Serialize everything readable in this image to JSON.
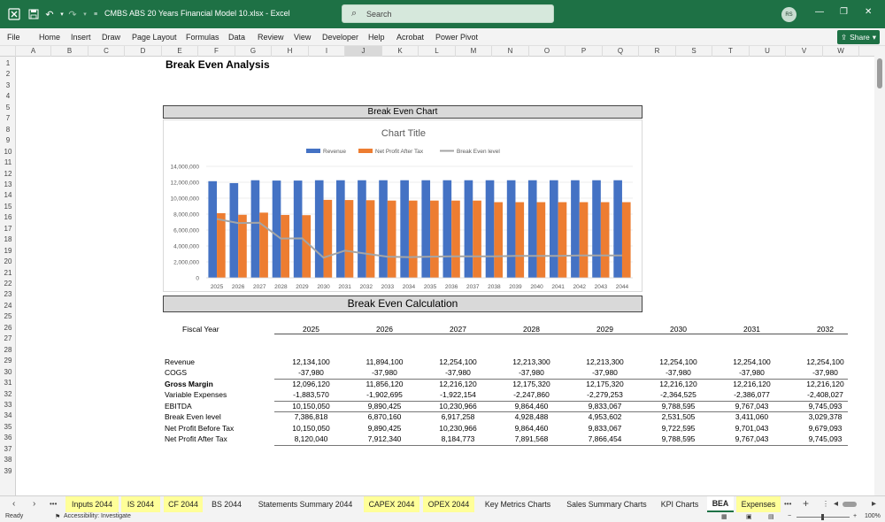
{
  "window": {
    "doc_title": "CMBS ABS 20 Years Financial Model 10.xlsx  -  Excel",
    "search_placeholder": "Search",
    "avatar_initials": "RS"
  },
  "menu": [
    "File",
    "Home",
    "Insert",
    "Draw",
    "Page Layout",
    "Formulas",
    "Data",
    "Review",
    "View",
    "Developer",
    "Help",
    "Acrobat",
    "Power Pivot"
  ],
  "share_label": "Share",
  "columns": [
    "A",
    "B",
    "C",
    "D",
    "E",
    "F",
    "G",
    "H",
    "I",
    "J",
    "K",
    "L",
    "M",
    "N",
    "O",
    "P",
    "Q",
    "R",
    "S",
    "T",
    "U",
    "V",
    "W"
  ],
  "selected_column": "J",
  "rows": [
    "1",
    "2",
    "3",
    "4",
    "5",
    "7",
    "8",
    "9",
    "10",
    "11",
    "12",
    "13",
    "14",
    "15",
    "16",
    "17",
    "18",
    "19",
    "20",
    "21",
    "22",
    "23",
    "24",
    "25",
    "26",
    "27",
    "28",
    "29",
    "30",
    "31",
    "32",
    "33",
    "34",
    "35",
    "36",
    "37",
    "38",
    "39"
  ],
  "sheet": {
    "heading": "Break Even Analysis",
    "chart_section_title": "Break Even Chart",
    "calc_section_title": "Break Even Calculation"
  },
  "chart_data": {
    "type": "bar",
    "title": "Chart Title",
    "categories": [
      "2025",
      "2026",
      "2027",
      "2028",
      "2029",
      "2030",
      "2031",
      "2032",
      "2033",
      "2034",
      "2035",
      "2036",
      "2037",
      "2038",
      "2039",
      "2040",
      "2041",
      "2042",
      "2043",
      "2044"
    ],
    "series": [
      {
        "name": "Revenue",
        "type": "bar",
        "color": "#4472c4",
        "values": [
          12134100,
          11894100,
          12254100,
          12213300,
          12213300,
          12254100,
          12254100,
          12254100,
          12254100,
          12254100,
          12254100,
          12254100,
          12254100,
          12254100,
          12254100,
          12254100,
          12254100,
          12254100,
          12254100,
          12254100
        ]
      },
      {
        "name": "Net Profit After Tax",
        "type": "bar",
        "color": "#ed7d31",
        "values": [
          8120040,
          7912340,
          8184773,
          7891568,
          7866454,
          9788595,
          9767043,
          9745093,
          9700000,
          9700000,
          9700000,
          9700000,
          9700000,
          9500000,
          9500000,
          9500000,
          9500000,
          9500000,
          9500000,
          9500000
        ]
      },
      {
        "name": "Break Even level",
        "type": "line",
        "color": "#a5a5a5",
        "values": [
          7386818,
          6870160,
          6917258,
          4928488,
          4953602,
          2531505,
          3411060,
          3029378,
          2650000,
          2600000,
          2650000,
          2700000,
          2700000,
          2700000,
          2750000,
          2750000,
          2750000,
          2800000,
          2800000,
          2800000
        ]
      }
    ],
    "yticks": [
      "14,000,000",
      "12,000,000",
      "10,000,000",
      "8,000,000",
      "6,000,000",
      "4,000,000",
      "2,000,000",
      "0"
    ],
    "ylim": [
      0,
      14000000
    ],
    "grid": true,
    "legend": "top"
  },
  "table": {
    "header_label": "Fiscal Year",
    "years": [
      "2025",
      "2026",
      "2027",
      "2028",
      "2029",
      "2030",
      "2031",
      "2032"
    ],
    "rows": [
      {
        "label": "Revenue",
        "bold": false,
        "values": [
          "12,134,100",
          "11,894,100",
          "12,254,100",
          "12,213,300",
          "12,213,300",
          "12,254,100",
          "12,254,100",
          "12,254,100"
        ]
      },
      {
        "label": "COGS",
        "bold": false,
        "values": [
          "-37,980",
          "-37,980",
          "-37,980",
          "-37,980",
          "-37,980",
          "-37,980",
          "-37,980",
          "-37,980"
        ]
      },
      {
        "label": "Gross Margin",
        "bold": true,
        "values": [
          "12,096,120",
          "11,856,120",
          "12,216,120",
          "12,175,320",
          "12,175,320",
          "12,216,120",
          "12,216,120",
          "12,216,120"
        ]
      },
      {
        "label": "Variable Expenses",
        "bold": false,
        "values": [
          "-1,883,570",
          "-1,902,695",
          "-1,922,154",
          "-2,247,860",
          "-2,279,253",
          "-2,364,525",
          "-2,386,077",
          "-2,408,027"
        ]
      },
      {
        "label": "EBITDA",
        "bold": false,
        "values": [
          "10,150,050",
          "9,890,425",
          "10,230,966",
          "9,864,460",
          "9,833,067",
          "9,788,595",
          "9,767,043",
          "9,745,093"
        ]
      },
      {
        "label": "Break Even level",
        "bold": false,
        "values": [
          "7,386,818",
          "6,870,160",
          "6,917,258",
          "4,928,488",
          "4,953,602",
          "2,531,505",
          "3,411,060",
          "3,029,378"
        ]
      },
      {
        "label": "Net Profit Before Tax",
        "bold": false,
        "values": [
          "10,150,050",
          "9,890,425",
          "10,230,966",
          "9,864,460",
          "9,833,067",
          "9,722,595",
          "9,701,043",
          "9,679,093"
        ]
      },
      {
        "label": "Net Profit After Tax",
        "bold": false,
        "values": [
          "8,120,040",
          "7,912,340",
          "8,184,773",
          "7,891,568",
          "7,866,454",
          "9,788,595",
          "9,767,043",
          "9,745,093"
        ]
      }
    ]
  },
  "tabs": [
    {
      "label": "Inputs 2044",
      "color": "yellow"
    },
    {
      "label": "IS 2044",
      "color": "yellow"
    },
    {
      "label": "CF 2044",
      "color": "yellow"
    },
    {
      "label": "BS 2044",
      "color": "none"
    },
    {
      "label": "Statements Summary 2044",
      "color": "none"
    },
    {
      "label": "CAPEX 2044",
      "color": "yellow"
    },
    {
      "label": "OPEX 2044",
      "color": "yellow"
    },
    {
      "label": "Key Metrics Charts",
      "color": "none"
    },
    {
      "label": "Sales Summary Charts",
      "color": "none"
    },
    {
      "label": "KPI Charts",
      "color": "none"
    },
    {
      "label": "BEA",
      "color": "active"
    },
    {
      "label": "Expenses",
      "color": "yellow"
    }
  ],
  "status": {
    "ready": "Ready",
    "accessibility": "Accessibility: Investigate",
    "zoom": "100%"
  }
}
